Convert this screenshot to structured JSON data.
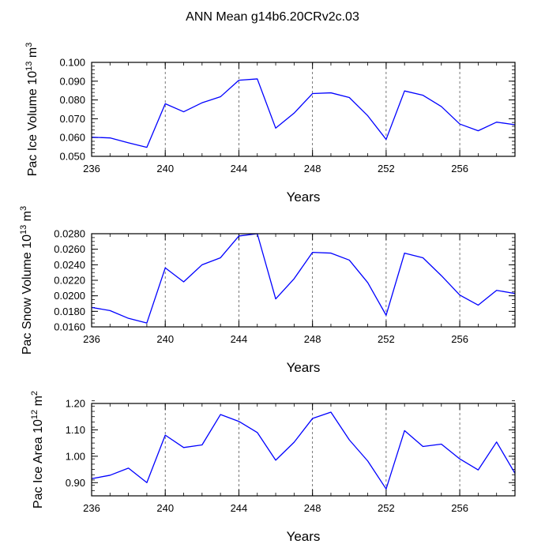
{
  "title": "ANN Mean g14b6.20CRv2c.03",
  "chart_data": [
    {
      "type": "line",
      "ylabel": "Pac Ice Volume",
      "ylabel_exp": "10",
      "ylabel_exp_power": "13",
      "ylabel_unit": "m",
      "ylabel_unit_power": "3",
      "xlabel": "Years",
      "xlim": [
        236,
        259
      ],
      "ylim": [
        0.05,
        0.1
      ],
      "xticks": [
        236,
        240,
        244,
        248,
        252,
        256
      ],
      "yticks": [
        0.05,
        0.06,
        0.07,
        0.08,
        0.09,
        0.1
      ],
      "ytick_labels": [
        "0.050",
        "0.060",
        "0.070",
        "0.080",
        "0.090",
        "0.100"
      ],
      "y_minor_step": 0.002,
      "gridlines_x": [
        240,
        244,
        248,
        252,
        256
      ],
      "x": [
        236,
        237,
        238,
        239,
        240,
        241,
        242,
        243,
        244,
        245,
        246,
        247,
        248,
        249,
        250,
        251,
        252,
        253,
        254,
        255,
        256,
        257,
        258,
        259
      ],
      "series": [
        {
          "color": "#0000ff",
          "values": [
            0.0602,
            0.0598,
            0.0572,
            0.0548,
            0.078,
            0.0737,
            0.0785,
            0.0817,
            0.0905,
            0.0912,
            0.065,
            0.073,
            0.0834,
            0.0838,
            0.0813,
            0.0716,
            0.059,
            0.0848,
            0.0825,
            0.0765,
            0.0672,
            0.0636,
            0.0682,
            0.0668
          ]
        }
      ]
    },
    {
      "type": "line",
      "ylabel": "Pac Snow Volume",
      "ylabel_exp": "10",
      "ylabel_exp_power": "13",
      "ylabel_unit": "m",
      "ylabel_unit_power": "3",
      "xlabel": "Years",
      "xlim": [
        236,
        259
      ],
      "ylim": [
        0.016,
        0.028
      ],
      "xticks": [
        236,
        240,
        244,
        248,
        252,
        256
      ],
      "yticks": [
        0.016,
        0.018,
        0.02,
        0.022,
        0.024,
        0.026,
        0.028
      ],
      "ytick_labels": [
        "0.0160",
        "0.0180",
        "0.0200",
        "0.0220",
        "0.0240",
        "0.0260",
        "0.0280"
      ],
      "y_minor_step": 0.0005,
      "gridlines_x": [
        240,
        244,
        248,
        252,
        256
      ],
      "x": [
        236,
        237,
        238,
        239,
        240,
        241,
        242,
        243,
        244,
        245,
        246,
        247,
        248,
        249,
        250,
        251,
        252,
        253,
        254,
        255,
        256,
        257,
        258,
        259
      ],
      "series": [
        {
          "color": "#0000ff",
          "values": [
            0.0185,
            0.0181,
            0.0171,
            0.0165,
            0.0236,
            0.0218,
            0.024,
            0.0249,
            0.0277,
            0.028,
            0.0196,
            0.0222,
            0.0256,
            0.0255,
            0.0246,
            0.0217,
            0.0175,
            0.0255,
            0.0249,
            0.0226,
            0.0201,
            0.0188,
            0.0207,
            0.0203
          ]
        }
      ]
    },
    {
      "type": "line",
      "ylabel": "Pac Ice Area",
      "ylabel_exp": "10",
      "ylabel_exp_power": "12",
      "ylabel_unit": "m",
      "ylabel_unit_power": "2",
      "xlabel": "Years",
      "xlim": [
        236,
        259
      ],
      "ylim": [
        0.85,
        1.2
      ],
      "xticks": [
        236,
        240,
        244,
        248,
        252,
        256
      ],
      "yticks": [
        0.9,
        1.0,
        1.1,
        1.2
      ],
      "ytick_labels": [
        "0.90",
        "1.00",
        "1.10",
        "1.20"
      ],
      "y_minor_step": 0.02,
      "gridlines_x": [
        240,
        244,
        248,
        252,
        256
      ],
      "x": [
        236,
        237,
        238,
        239,
        240,
        241,
        242,
        243,
        244,
        245,
        246,
        247,
        248,
        249,
        250,
        251,
        252,
        253,
        254,
        255,
        256,
        257,
        258,
        259
      ],
      "series": [
        {
          "color": "#0000ff",
          "values": [
            0.915,
            0.928,
            0.955,
            0.9,
            1.08,
            1.033,
            1.043,
            1.158,
            1.132,
            1.09,
            0.985,
            1.053,
            1.143,
            1.167,
            1.062,
            0.982,
            0.876,
            1.097,
            1.037,
            1.046,
            0.99,
            0.948,
            1.054,
            0.935
          ]
        }
      ]
    }
  ]
}
